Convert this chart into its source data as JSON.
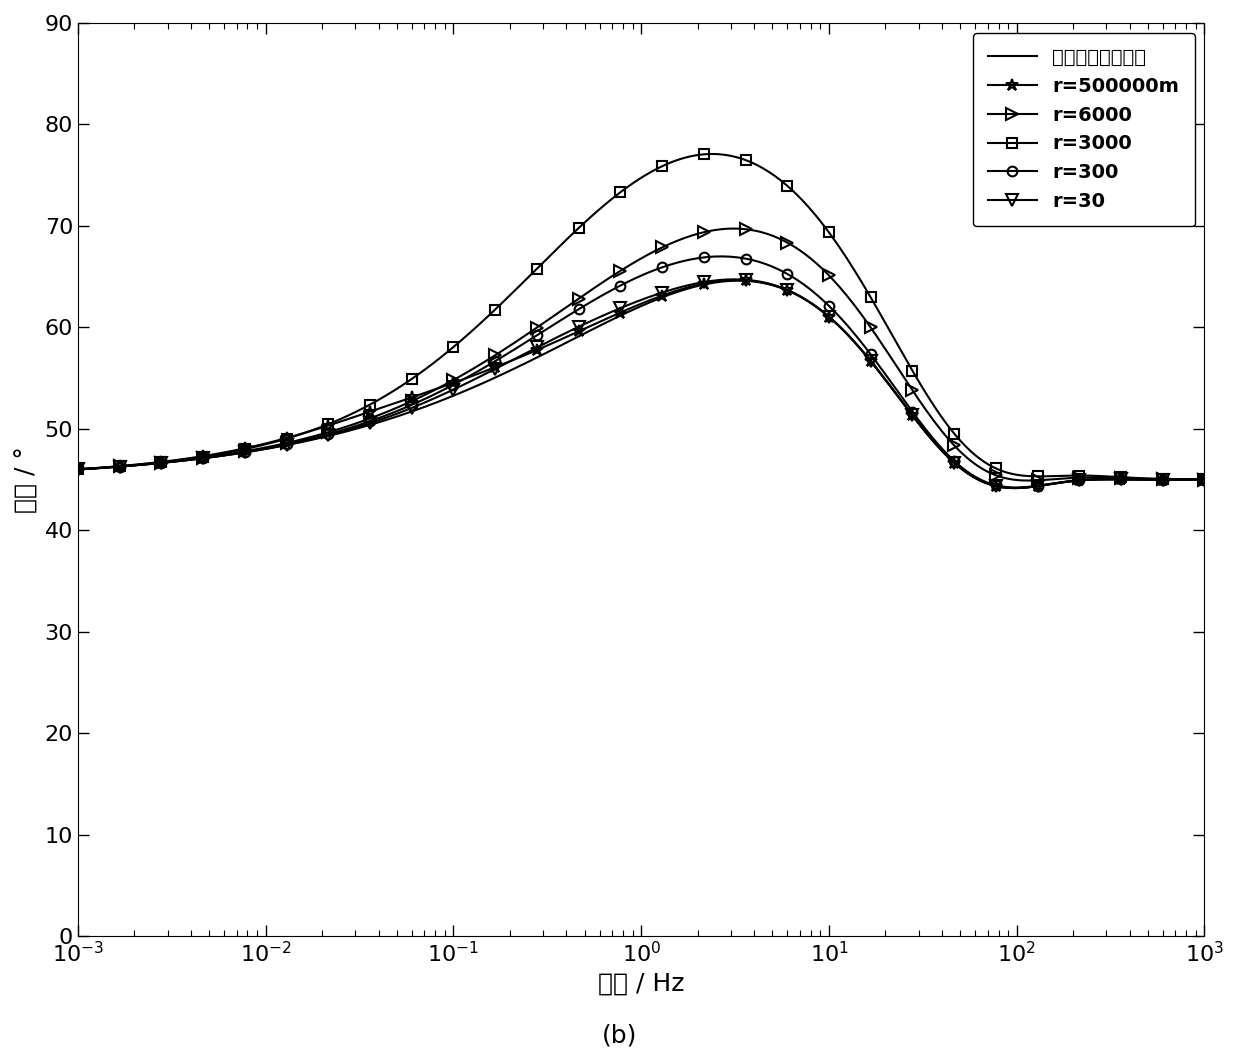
{
  "xlabel": "频率 / Hz",
  "ylabel": "相位 / °",
  "subtitle": "(b)",
  "xlim_log": [
    -3,
    3
  ],
  "ylim": [
    0,
    90
  ],
  "yticks": [
    0,
    10,
    20,
    30,
    40,
    50,
    60,
    70,
    80,
    90
  ],
  "legend_entries": [
    {
      "label": "大地电磁阻抗相位",
      "marker": "none",
      "linestyle": "-"
    },
    {
      "label": "r=500000m",
      "marker": "*",
      "linestyle": "-"
    },
    {
      "label": "r=6000",
      "marker": ">",
      "linestyle": "-"
    },
    {
      "label": "r=3000",
      "marker": "s",
      "linestyle": "-"
    },
    {
      "label": "r=300",
      "marker": "o",
      "linestyle": "-"
    },
    {
      "label": "r=30",
      "marker": "v",
      "linestyle": "-"
    }
  ],
  "r_values": [
    500000,
    6000,
    3000,
    300,
    30
  ],
  "markers": [
    "*",
    ">",
    "s",
    "o",
    "v"
  ],
  "marker_sizes": [
    9,
    8,
    7,
    7,
    8
  ],
  "background_color": "#ffffff",
  "line_color": "#000000",
  "n_line_points": 300,
  "n_marker_points": 28
}
